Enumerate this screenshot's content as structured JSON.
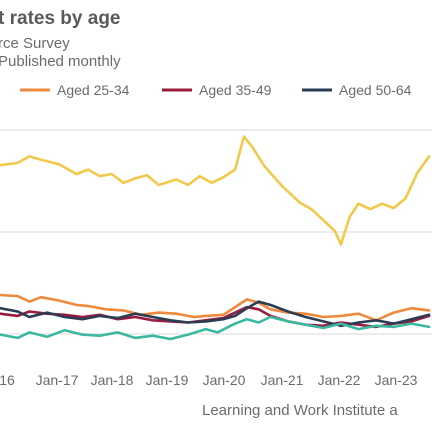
{
  "header": {
    "title": "t rates by age",
    "subtitle": "rce Survey",
    "note": "Published monthly"
  },
  "source": "Learning and Work Institute a",
  "chart_data": {
    "type": "line",
    "x_ticks": [
      "16",
      "Jan-17",
      "Jan-18",
      "Jan-19",
      "Jan-20",
      "Jan-21",
      "Jan-22",
      "Jan-23"
    ],
    "x_range": [
      "2016-07",
      "2023-10"
    ],
    "y_labels_visible": false,
    "grid": "horizontal",
    "legend": {
      "position": "top",
      "entries": [
        "Aged 25-34",
        "Aged 35-49",
        "Aged 50-64"
      ]
    },
    "series": [
      {
        "key": "youth",
        "color": "#f2c84b",
        "legend_visible": false,
        "points": [
          [
            2016.5,
            2.8
          ],
          [
            2016.8,
            3.0
          ],
          [
            2017.0,
            3.6
          ],
          [
            2017.2,
            3.3
          ],
          [
            2017.5,
            2.9
          ],
          [
            2017.8,
            2.0
          ],
          [
            2018.0,
            2.4
          ],
          [
            2018.2,
            1.8
          ],
          [
            2018.4,
            2.0
          ],
          [
            2018.6,
            1.2
          ],
          [
            2018.8,
            1.6
          ],
          [
            2019.0,
            1.9
          ],
          [
            2019.2,
            1.0
          ],
          [
            2019.5,
            1.5
          ],
          [
            2019.7,
            1.0
          ],
          [
            2019.9,
            1.8
          ],
          [
            2020.1,
            1.2
          ],
          [
            2020.3,
            1.7
          ],
          [
            2020.5,
            2.4
          ],
          [
            2020.65,
            5.4
          ],
          [
            2020.8,
            4.4
          ],
          [
            2021.0,
            2.7
          ],
          [
            2021.3,
            0.9
          ],
          [
            2021.6,
            -0.6
          ],
          [
            2021.8,
            -1.2
          ],
          [
            2022.0,
            -2.2
          ],
          [
            2022.2,
            -3.2
          ],
          [
            2022.3,
            -4.4
          ],
          [
            2022.45,
            -1.9
          ],
          [
            2022.6,
            -0.7
          ],
          [
            2022.8,
            -1.2
          ],
          [
            2023.0,
            -0.7
          ],
          [
            2023.2,
            -1.1
          ],
          [
            2023.4,
            -0.2
          ],
          [
            2023.6,
            2.1
          ],
          [
            2023.8,
            3.6
          ]
        ]
      },
      {
        "key": "aged_25_34",
        "name": "Aged 25-34",
        "color": "#ef8a3d",
        "points": [
          [
            2016.5,
            -9.0
          ],
          [
            2016.8,
            -9.1
          ],
          [
            2017.0,
            -9.6
          ],
          [
            2017.2,
            -9.2
          ],
          [
            2017.5,
            -9.5
          ],
          [
            2017.8,
            -9.9
          ],
          [
            2018.0,
            -10.0
          ],
          [
            2018.3,
            -10.3
          ],
          [
            2018.6,
            -10.4
          ],
          [
            2018.9,
            -10.8
          ],
          [
            2019.2,
            -10.6
          ],
          [
            2019.5,
            -10.7
          ],
          [
            2019.8,
            -11.0
          ],
          [
            2020.0,
            -10.9
          ],
          [
            2020.3,
            -10.8
          ],
          [
            2020.5,
            -10.1
          ],
          [
            2020.7,
            -9.4
          ],
          [
            2020.9,
            -9.7
          ],
          [
            2021.1,
            -10.3
          ],
          [
            2021.4,
            -10.6
          ],
          [
            2021.7,
            -10.7
          ],
          [
            2022.0,
            -11.0
          ],
          [
            2022.3,
            -10.9
          ],
          [
            2022.6,
            -10.7
          ],
          [
            2022.9,
            -11.3
          ],
          [
            2023.2,
            -10.6
          ],
          [
            2023.5,
            -10.2
          ],
          [
            2023.8,
            -10.4
          ]
        ]
      },
      {
        "key": "aged_35_49",
        "name": "Aged 35-49",
        "color": "#9b1b3f",
        "points": [
          [
            2016.5,
            -10.7
          ],
          [
            2016.8,
            -10.9
          ],
          [
            2017.0,
            -10.5
          ],
          [
            2017.3,
            -10.7
          ],
          [
            2017.6,
            -10.8
          ],
          [
            2017.9,
            -11.0
          ],
          [
            2018.2,
            -10.8
          ],
          [
            2018.5,
            -11.2
          ],
          [
            2018.8,
            -11.0
          ],
          [
            2019.1,
            -11.3
          ],
          [
            2019.4,
            -11.4
          ],
          [
            2019.7,
            -11.5
          ],
          [
            2020.0,
            -11.3
          ],
          [
            2020.3,
            -11.1
          ],
          [
            2020.5,
            -10.6
          ],
          [
            2020.7,
            -10.1
          ],
          [
            2020.9,
            -10.3
          ],
          [
            2021.1,
            -10.9
          ],
          [
            2021.4,
            -11.4
          ],
          [
            2021.7,
            -11.7
          ],
          [
            2022.0,
            -11.8
          ],
          [
            2022.3,
            -11.5
          ],
          [
            2022.6,
            -11.7
          ],
          [
            2022.9,
            -11.9
          ],
          [
            2023.2,
            -11.6
          ],
          [
            2023.5,
            -11.4
          ],
          [
            2023.8,
            -10.9
          ]
        ]
      },
      {
        "key": "aged_50_64",
        "name": "Aged 50-64",
        "color": "#2a3d55",
        "points": [
          [
            2016.5,
            -10.2
          ],
          [
            2016.8,
            -10.5
          ],
          [
            2017.0,
            -11.0
          ],
          [
            2017.3,
            -10.6
          ],
          [
            2017.6,
            -11.0
          ],
          [
            2017.9,
            -11.2
          ],
          [
            2018.2,
            -10.9
          ],
          [
            2018.5,
            -11.1
          ],
          [
            2018.8,
            -10.7
          ],
          [
            2019.1,
            -11.0
          ],
          [
            2019.4,
            -11.3
          ],
          [
            2019.7,
            -11.5
          ],
          [
            2020.0,
            -11.4
          ],
          [
            2020.3,
            -11.2
          ],
          [
            2020.5,
            -10.9
          ],
          [
            2020.7,
            -10.2
          ],
          [
            2020.9,
            -9.6
          ],
          [
            2021.1,
            -9.9
          ],
          [
            2021.4,
            -10.5
          ],
          [
            2021.7,
            -11.0
          ],
          [
            2022.0,
            -11.4
          ],
          [
            2022.3,
            -11.8
          ],
          [
            2022.6,
            -11.5
          ],
          [
            2022.9,
            -11.3
          ],
          [
            2023.2,
            -11.6
          ],
          [
            2023.5,
            -11.2
          ],
          [
            2023.8,
            -10.8
          ]
        ]
      },
      {
        "key": "green",
        "color": "#3bb8a0",
        "legend_visible": false,
        "points": [
          [
            2016.5,
            -12.6
          ],
          [
            2016.8,
            -12.9
          ],
          [
            2017.0,
            -12.4
          ],
          [
            2017.3,
            -12.8
          ],
          [
            2017.6,
            -12.2
          ],
          [
            2017.9,
            -12.6
          ],
          [
            2018.2,
            -12.7
          ],
          [
            2018.5,
            -12.4
          ],
          [
            2018.8,
            -12.9
          ],
          [
            2019.1,
            -12.7
          ],
          [
            2019.4,
            -13.0
          ],
          [
            2019.7,
            -12.6
          ],
          [
            2020.0,
            -12.1
          ],
          [
            2020.2,
            -12.4
          ],
          [
            2020.5,
            -11.6
          ],
          [
            2020.7,
            -11.2
          ],
          [
            2020.9,
            -11.5
          ],
          [
            2021.1,
            -11.0
          ],
          [
            2021.4,
            -11.4
          ],
          [
            2021.7,
            -11.7
          ],
          [
            2022.0,
            -12.0
          ],
          [
            2022.3,
            -11.6
          ],
          [
            2022.6,
            -12.1
          ],
          [
            2022.9,
            -11.8
          ],
          [
            2023.2,
            -11.9
          ],
          [
            2023.5,
            -11.6
          ],
          [
            2023.8,
            -11.9
          ]
        ]
      }
    ],
    "y_domain": [
      -14,
      6
    ]
  }
}
